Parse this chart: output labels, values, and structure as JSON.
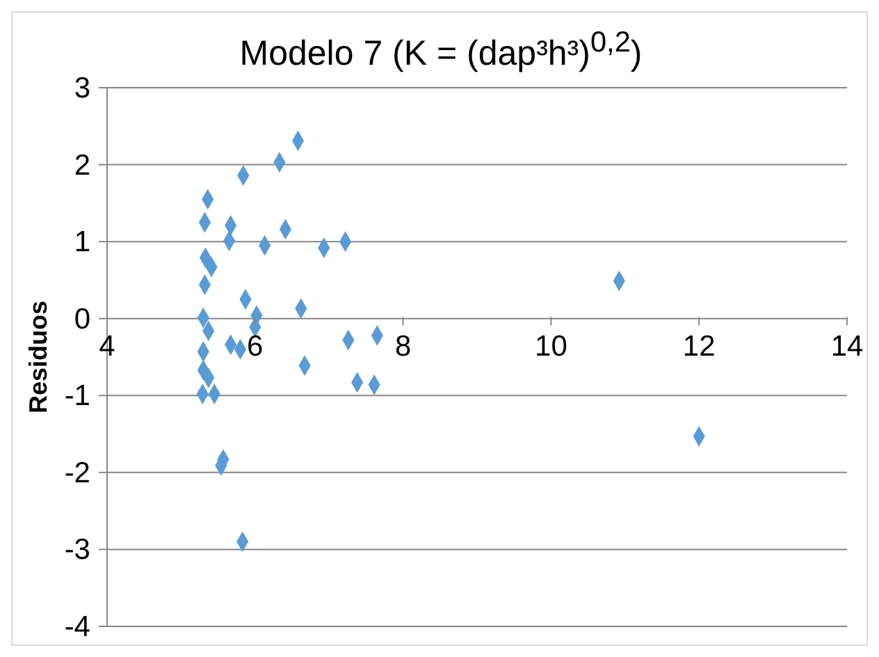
{
  "chart_data": {
    "type": "scatter",
    "title": "Modelo 7 (K = (dap³h³)$^{0,2}$)",
    "ylabel": "Residuos",
    "xlim": [
      4,
      14
    ],
    "xticks": [
      4,
      6,
      8,
      10,
      12,
      14
    ],
    "ylim": [
      -4,
      3
    ],
    "yticks": [
      -4,
      -3,
      -2,
      -1,
      0,
      1,
      2,
      3
    ],
    "grid": "y",
    "marker": "diamond",
    "legend": false,
    "series": [
      {
        "color": "#5b9bd5",
        "x": [
          6.58,
          6.33,
          5.84,
          5.36,
          5.32,
          5.67,
          6.41,
          5.65,
          6.13,
          6.93,
          7.22,
          5.33,
          5.41,
          5.32,
          5.87,
          6.62,
          5.3,
          6.02,
          6.0,
          5.37,
          7.26,
          7.65,
          5.67,
          5.8,
          5.3,
          6.67,
          5.3,
          5.37,
          7.38,
          7.61,
          5.29,
          5.45,
          5.57,
          5.54,
          5.83,
          10.92,
          12.0
        ],
        "values": [
          2.31,
          2.03,
          1.86,
          1.55,
          1.25,
          1.21,
          1.16,
          1.01,
          0.95,
          0.92,
          1.0,
          0.79,
          0.67,
          0.44,
          0.25,
          0.13,
          0.01,
          0.04,
          -0.11,
          -0.16,
          -0.28,
          -0.22,
          -0.34,
          -0.4,
          -0.43,
          -0.61,
          -0.67,
          -0.77,
          -0.83,
          -0.86,
          -0.98,
          -0.98,
          -1.83,
          -1.91,
          -2.9,
          0.49,
          -1.53
        ]
      }
    ]
  }
}
